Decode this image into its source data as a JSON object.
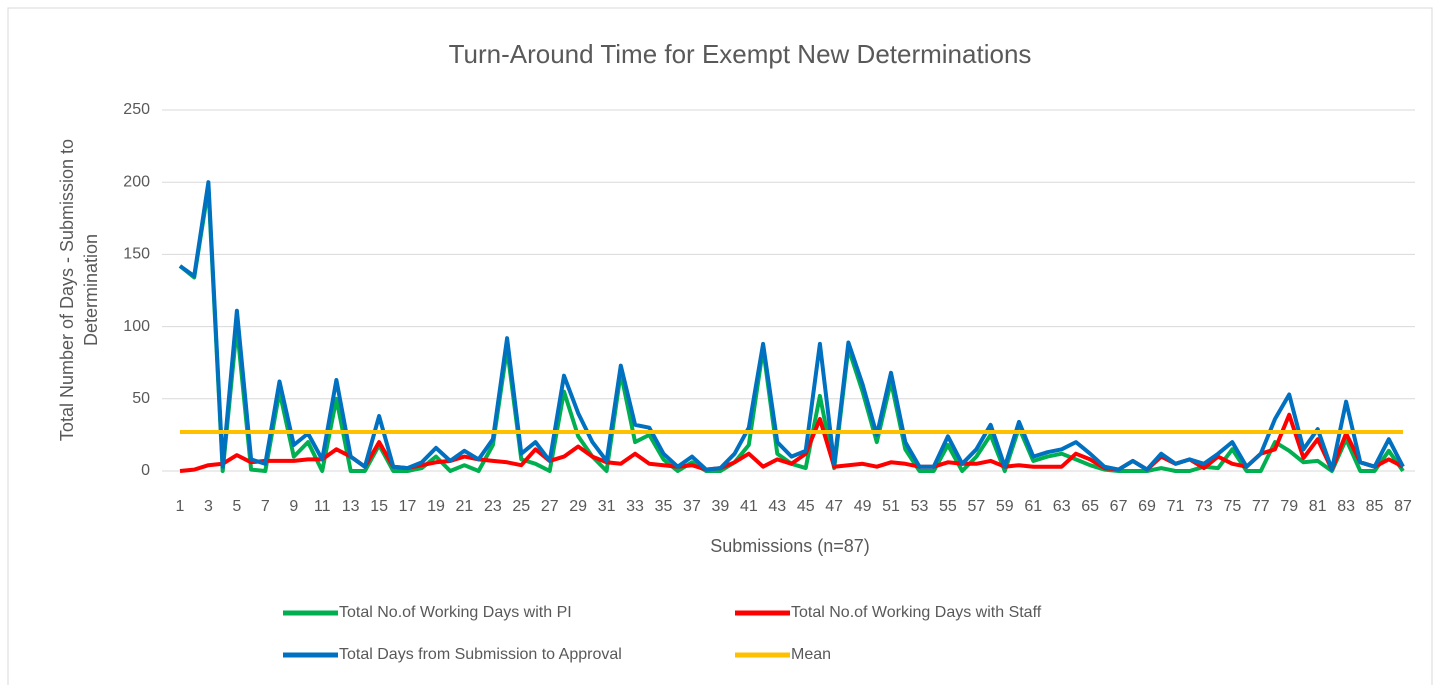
{
  "chart_data": {
    "type": "line",
    "title": "Turn-Around Time for Exempt New Determinations",
    "x_label": "Submissions (n=87)",
    "y_label": [
      "Total Number of Days - Submission to",
      "Determination"
    ],
    "categories": [
      1,
      null,
      3,
      null,
      5,
      null,
      7,
      null,
      9,
      null,
      11,
      null,
      13,
      null,
      15,
      null,
      17,
      null,
      19,
      null,
      21,
      null,
      23,
      null,
      25,
      null,
      27,
      null,
      29,
      null,
      31,
      null,
      33,
      null,
      35,
      null,
      37,
      null,
      39,
      null,
      41,
      null,
      43,
      null,
      45,
      null,
      47,
      null,
      49,
      null,
      51,
      null,
      53,
      null,
      55,
      null,
      57,
      null,
      59,
      null,
      61,
      null,
      63,
      null,
      65,
      null,
      67,
      null,
      69,
      null,
      71,
      null,
      73,
      null,
      75,
      null,
      77,
      null,
      79,
      null,
      81,
      null,
      83,
      null,
      85,
      null,
      87
    ],
    "ylim": [
      0,
      250
    ],
    "yticks": [
      0,
      50,
      100,
      150,
      200,
      250
    ],
    "grid": true,
    "legend": "bottom",
    "series": [
      {
        "name": "Total No.of Working Days with PI",
        "color": "#00b050",
        "values": [
          142,
          134,
          196,
          0,
          100,
          1,
          0,
          55,
          10,
          20,
          0,
          50,
          0,
          0,
          18,
          0,
          0,
          2,
          10,
          0,
          4,
          0,
          18,
          85,
          8,
          5,
          0,
          55,
          24,
          10,
          0,
          68,
          20,
          25,
          8,
          0,
          6,
          0,
          0,
          6,
          18,
          85,
          12,
          5,
          2,
          52,
          2,
          85,
          55,
          20,
          62,
          15,
          0,
          0,
          18,
          0,
          10,
          25,
          0,
          30,
          7,
          10,
          12,
          8,
          4,
          1,
          0,
          0,
          0,
          2,
          0,
          0,
          3,
          2,
          15,
          0,
          0,
          20,
          14,
          6,
          7,
          0,
          22,
          0,
          0,
          14,
          0
        ]
      },
      {
        "name": "Total No.of Working Days with Staff",
        "color": "#ff0000",
        "values": [
          0,
          1,
          4,
          5,
          11,
          6,
          7,
          7,
          7,
          8,
          8,
          15,
          10,
          3,
          20,
          3,
          2,
          4,
          6,
          7,
          10,
          8,
          7,
          6,
          4,
          15,
          7,
          10,
          17,
          10,
          6,
          5,
          12,
          5,
          4,
          3,
          4,
          1,
          2,
          6,
          12,
          3,
          8,
          5,
          12,
          36,
          3,
          4,
          5,
          3,
          6,
          5,
          3,
          3,
          6,
          5,
          5,
          7,
          3,
          4,
          3,
          3,
          3,
          12,
          8,
          2,
          1,
          7,
          1,
          10,
          5,
          8,
          2,
          10,
          5,
          3,
          12,
          15,
          39,
          9,
          22,
          1,
          26,
          6,
          3,
          8,
          3
        ]
      },
      {
        "name": "Total Days from Submission to Approval",
        "color": "#0070c0",
        "values": [
          142,
          135,
          200,
          3,
          111,
          8,
          5,
          62,
          18,
          26,
          8,
          63,
          10,
          3,
          38,
          3,
          2,
          6,
          16,
          7,
          14,
          8,
          22,
          92,
          12,
          20,
          7,
          66,
          40,
          20,
          7,
          73,
          32,
          30,
          12,
          3,
          10,
          1,
          2,
          12,
          30,
          88,
          20,
          10,
          14,
          88,
          5,
          89,
          60,
          25,
          68,
          20,
          3,
          3,
          24,
          5,
          15,
          32,
          3,
          34,
          10,
          13,
          15,
          20,
          12,
          3,
          1,
          7,
          1,
          12,
          5,
          8,
          5,
          12,
          20,
          3,
          12,
          36,
          53,
          15,
          29,
          1,
          48,
          6,
          3,
          22,
          3
        ]
      },
      {
        "name": "Mean",
        "color": "#ffc000",
        "values": [
          27,
          27,
          27,
          27,
          27,
          27,
          27,
          27,
          27,
          27,
          27,
          27,
          27,
          27,
          27,
          27,
          27,
          27,
          27,
          27,
          27,
          27,
          27,
          27,
          27,
          27,
          27,
          27,
          27,
          27,
          27,
          27,
          27,
          27,
          27,
          27,
          27,
          27,
          27,
          27,
          27,
          27,
          27,
          27,
          27,
          27,
          27,
          27,
          27,
          27,
          27,
          27,
          27,
          27,
          27,
          27,
          27,
          27,
          27,
          27,
          27,
          27,
          27,
          27,
          27,
          27,
          27,
          27,
          27,
          27,
          27,
          27,
          27,
          27,
          27,
          27,
          27,
          27,
          27,
          27,
          27,
          27,
          27,
          27,
          27,
          27,
          27
        ]
      }
    ]
  }
}
